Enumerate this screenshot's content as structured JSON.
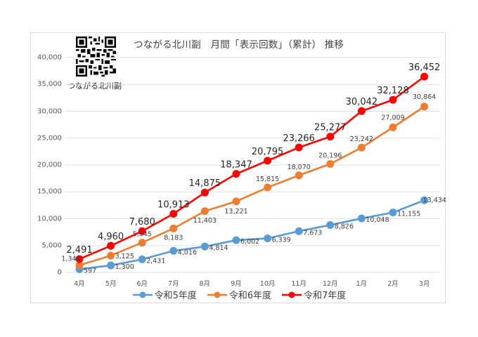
{
  "chart_data": {
    "type": "line",
    "title": "つながる北川副　月間「表示回数」（累計） 推移",
    "xlabel": "",
    "ylabel": "",
    "ylim": [
      0,
      40000
    ],
    "yticks": [
      0,
      5000,
      10000,
      15000,
      20000,
      25000,
      30000,
      35000,
      40000
    ],
    "ytick_labels": [
      "0",
      "5,000",
      "10,000",
      "15,000",
      "20,000",
      "25,000",
      "30,000",
      "35,000",
      "40,000"
    ],
    "grid": true,
    "legend_position": "bottom",
    "categories": [
      "4月",
      "5月",
      "6月",
      "7月",
      "8月",
      "9月",
      "10月",
      "11月",
      "12月",
      "1月",
      "2月",
      "3月"
    ],
    "series": [
      {
        "name": "令和5年度",
        "color": "#5b9bd5",
        "values": [
          597,
          1300,
          2431,
          4016,
          4814,
          6002,
          6339,
          7673,
          8826,
          10048,
          11155,
          13434
        ],
        "labels": [
          "597",
          "1,300",
          "2,431",
          "4,016",
          "4,814",
          "6,002",
          "6,339",
          "7,673",
          "8,826",
          "10,048",
          "11,155",
          "13,434"
        ]
      },
      {
        "name": "令和6年度",
        "color": "#ed7d31",
        "values": [
          1344,
          3125,
          5545,
          8183,
          11403,
          13221,
          15815,
          18070,
          20196,
          23242,
          27009,
          30864
        ],
        "labels": [
          "1,344",
          "3,125",
          "5,545",
          "8,183",
          "11,403",
          "13,221",
          "15,815",
          "18,070",
          "20,196",
          "23,242",
          "27,009",
          "30,864"
        ]
      },
      {
        "name": "令和7年度",
        "color": "#ff0000",
        "values": [
          2491,
          4960,
          7680,
          10913,
          14875,
          18347,
          20795,
          23266,
          25277,
          30042,
          32128,
          36452
        ],
        "labels": [
          "2,491",
          "4,960",
          "7,680",
          "10,913",
          "14,875",
          "18,347",
          "20,795",
          "23,266",
          "25,277",
          "30,042",
          "32,128",
          "36,452"
        ]
      }
    ],
    "annotations": [
      {
        "type": "qr-code",
        "caption": "つながる北川副"
      }
    ]
  },
  "header": {
    "title": "つながる北川副　月間「表示回数」（累計） 推移",
    "qr_caption": "つながる北川副"
  },
  "legend": {
    "items": [
      {
        "label": "令和5年度",
        "color": "#5b9bd5"
      },
      {
        "label": "令和6年度",
        "color": "#ed7d31"
      },
      {
        "label": "令和7年度",
        "color": "#ff0000"
      }
    ]
  }
}
